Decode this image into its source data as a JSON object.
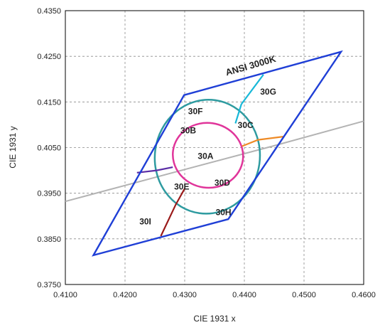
{
  "chart_data": {
    "type": "line",
    "title": "",
    "xlabel": "CIE 1931 x",
    "ylabel": "CIE 1931 y",
    "xlim": [
      0.41,
      0.46
    ],
    "ylim": [
      0.375,
      0.435
    ],
    "xticks": [
      "0.4100",
      "0.4200",
      "0.4300",
      "0.4400",
      "0.4500",
      "0.4600"
    ],
    "yticks": [
      "0.3750",
      "0.3850",
      "0.3950",
      "0.4050",
      "0.4150",
      "0.4250",
      "0.4350"
    ],
    "grid": "dashed",
    "quadrangle": {
      "label": "ANSI 3000K",
      "color": "#1f3fd6",
      "points": [
        [
          0.4147,
          0.3814
        ],
        [
          0.4373,
          0.3893
        ],
        [
          0.4562,
          0.426
        ],
        [
          0.4299,
          0.4165
        ]
      ]
    },
    "blackbody_locus": {
      "color": "#b3b3b3",
      "points": [
        [
          0.41,
          0.3932
        ],
        [
          0.43,
          0.4002
        ],
        [
          0.445,
          0.4054
        ],
        [
          0.46,
          0.4108
        ]
      ]
    },
    "ellipses": [
      {
        "name": "outer",
        "color": "#2e9ba0",
        "center": [
          0.4338,
          0.403
        ],
        "rx": 0.0088,
        "ry": 0.0125,
        "angle_deg": 8
      },
      {
        "name": "inner",
        "color": "#e0359a",
        "center": [
          0.4339,
          0.4033
        ],
        "rx": 0.0059,
        "ry": 0.0071,
        "angle_deg": 8
      }
    ],
    "dividers": [
      {
        "color": "#18b8d8",
        "points": [
          [
            0.4385,
            0.4103
          ],
          [
            0.4395,
            0.4145
          ],
          [
            0.4432,
            0.421
          ]
        ]
      },
      {
        "color": "#ee8a26",
        "points": [
          [
            0.4396,
            0.4053
          ],
          [
            0.4423,
            0.4067
          ],
          [
            0.4465,
            0.4074
          ]
        ]
      },
      {
        "color": "#5b2ea6",
        "points": [
          [
            0.428,
            0.4007
          ],
          [
            0.4253,
            0.4
          ],
          [
            0.422,
            0.3995
          ]
        ]
      },
      {
        "color": "#9a1a1a",
        "points": [
          [
            0.43,
            0.396
          ],
          [
            0.4285,
            0.3925
          ],
          [
            0.426,
            0.3856
          ]
        ]
      }
    ],
    "region_labels": [
      {
        "text": "30A",
        "x": 0.4335,
        "y": 0.4025
      },
      {
        "text": "30B",
        "x": 0.4306,
        "y": 0.4081
      },
      {
        "text": "30C",
        "x": 0.4402,
        "y": 0.4093
      },
      {
        "text": "30D",
        "x": 0.4363,
        "y": 0.3967
      },
      {
        "text": "30E",
        "x": 0.4295,
        "y": 0.3958
      },
      {
        "text": "30F",
        "x": 0.4318,
        "y": 0.4123
      },
      {
        "text": "30G",
        "x": 0.444,
        "y": 0.4166
      },
      {
        "text": "30H",
        "x": 0.4365,
        "y": 0.3902
      },
      {
        "text": "30I",
        "x": 0.4234,
        "y": 0.3882
      }
    ],
    "annotation": {
      "text": "ANSI 3000K",
      "x": 0.4412,
      "y": 0.4223,
      "angle_deg": -16
    }
  }
}
